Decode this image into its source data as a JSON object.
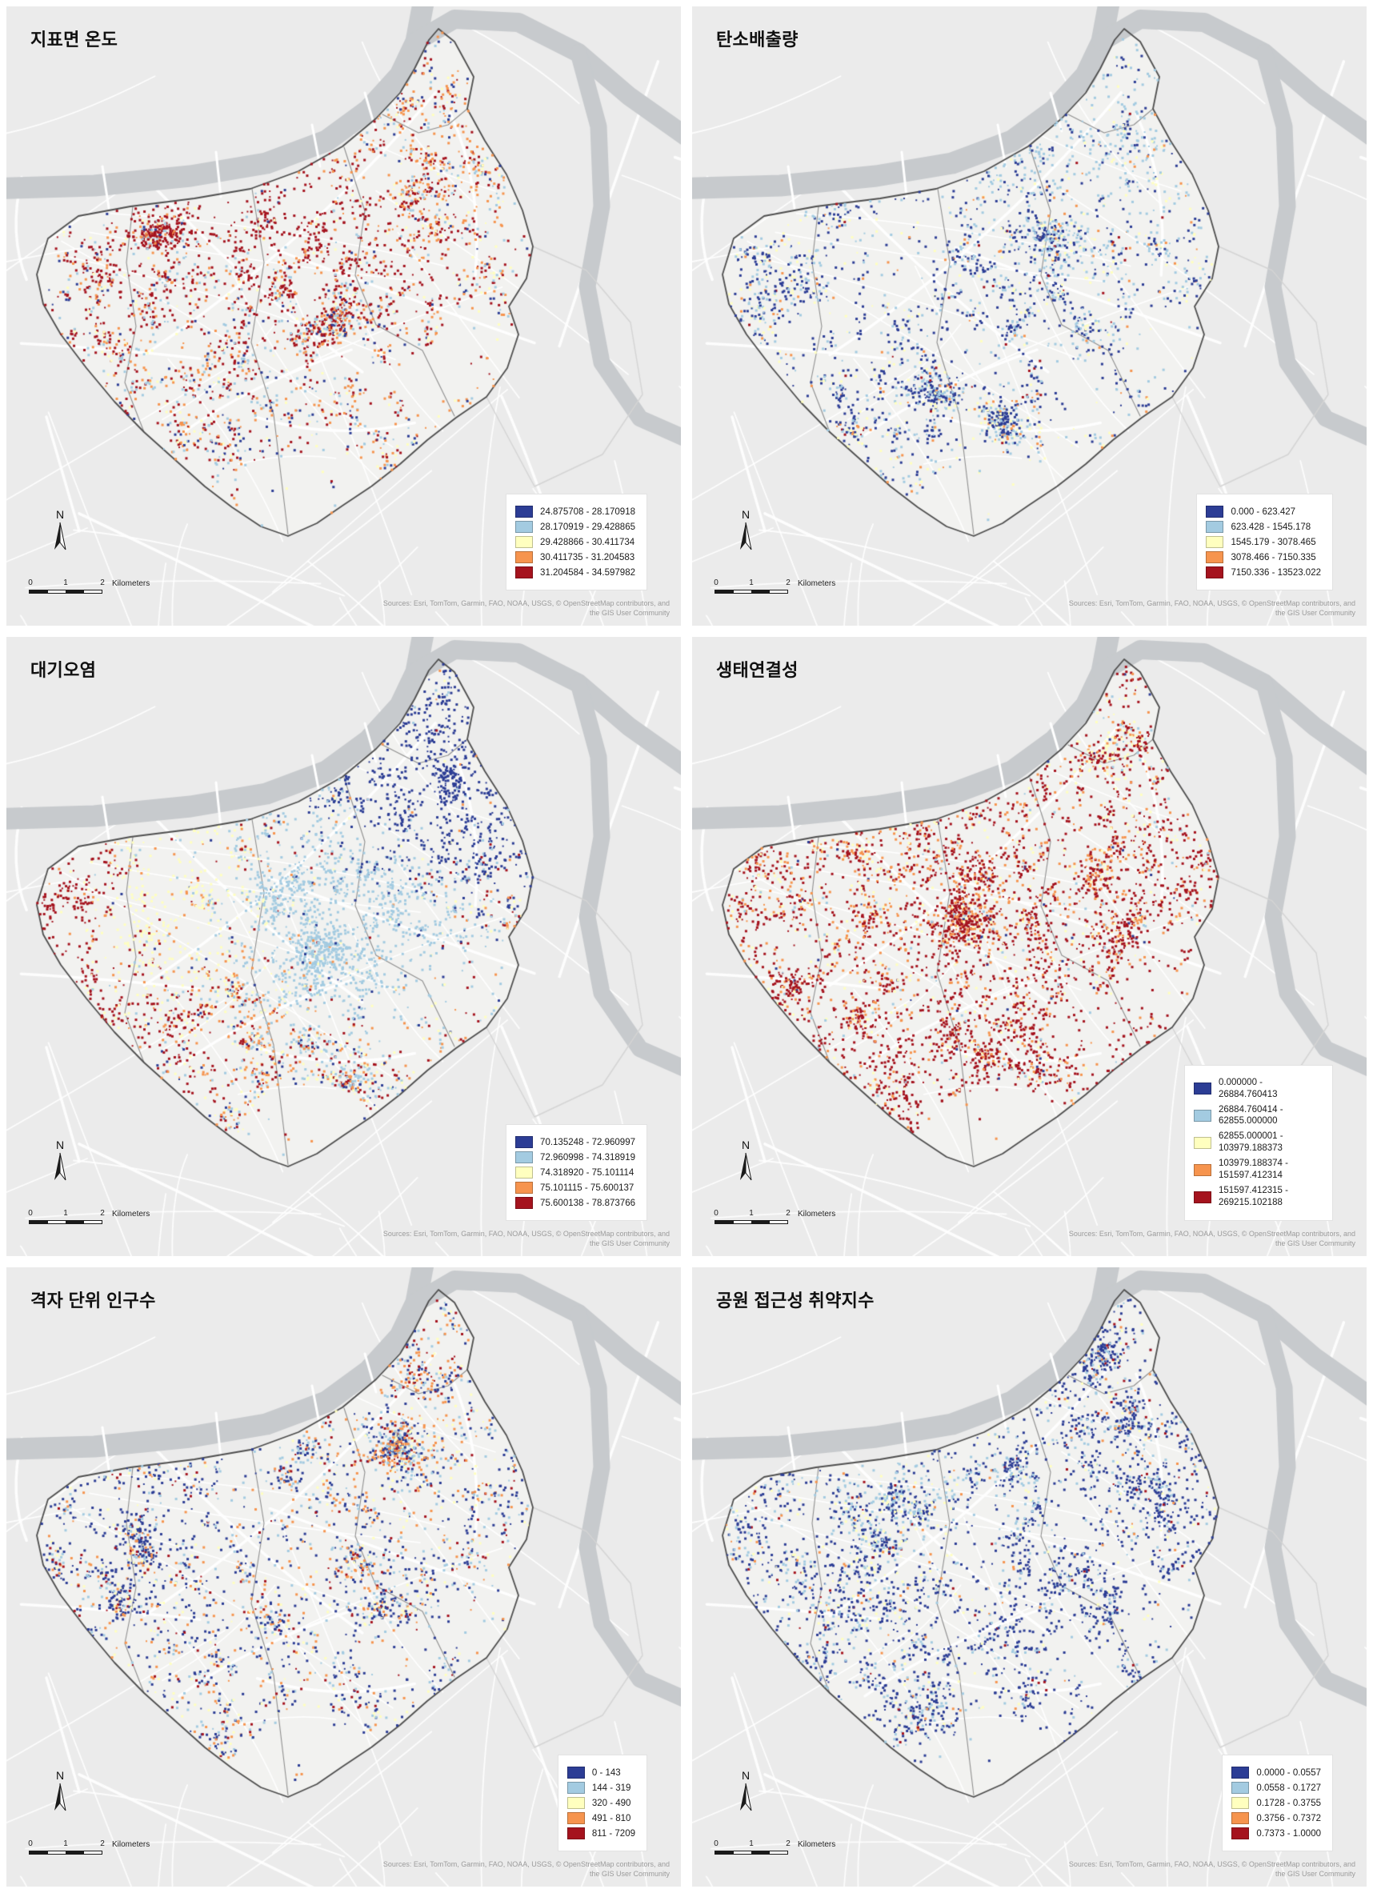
{
  "palette": {
    "classes": [
      "#2c3d95",
      "#a3cbe1",
      "#ffffbf",
      "#f6944e",
      "#a5131e"
    ],
    "basemap": "#ebebeb",
    "region_fill": "#f2f2f0",
    "river": "#c7cacd",
    "boundary": "#4f4f4f",
    "interior_boundary": "#8f8f8f",
    "adjacent_boundary": "#d4d4d4",
    "road": "#ffffff"
  },
  "common": {
    "north_label": "N",
    "scale_ticks": [
      "0",
      "1",
      "2"
    ],
    "scale_unit": "Kilometers",
    "attribution_line1": "Sources: Esri, TomTom, Garmin, FAO, NOAA, USGS, © OpenStreetMap contributors, and",
    "attribution_line2": "the GIS User Community"
  },
  "maps": [
    {
      "id": "land-surface-temperature",
      "title": "지표면 온도",
      "legend": [
        "24.875708 - 28.170918",
        "28.170919 - 29.428865",
        "29.428866 - 30.411734",
        "30.411735 - 31.204583",
        "31.204584 - 34.597982"
      ],
      "legend_wrap": false,
      "pattern": {
        "seed": 11,
        "count": 3200,
        "base": [
          0.08,
          0.16,
          0.12,
          0.32,
          0.32
        ],
        "hotspots": [
          [
            0.22,
            0.38,
            0.13,
            4,
            2.2
          ],
          [
            0.5,
            0.36,
            0.09,
            4,
            2.2
          ],
          [
            0.36,
            0.3,
            0.1,
            4,
            1.4
          ],
          [
            0.6,
            0.2,
            0.08,
            3,
            1.6
          ],
          [
            0.64,
            0.08,
            0.05,
            0,
            5.0
          ],
          [
            0.42,
            0.72,
            0.12,
            0,
            3.0
          ],
          [
            0.33,
            0.52,
            0.1,
            1,
            1.6
          ],
          [
            0.07,
            0.42,
            0.05,
            0,
            1.5
          ]
        ]
      }
    },
    {
      "id": "carbon-emissions",
      "title": "탄소배출량",
      "legend": [
        "0.000 - 623.427",
        "623.428 - 1545.178",
        "1545.179 - 3078.465",
        "3078.466 - 7150.335",
        "7150.336 - 13523.022"
      ],
      "legend_wrap": false,
      "pattern": {
        "seed": 22,
        "count": 2700,
        "base": [
          0.42,
          0.33,
          0.15,
          0.08,
          0.02
        ],
        "hotspots": [
          [
            0.62,
            0.18,
            0.1,
            1,
            2.2
          ],
          [
            0.3,
            0.45,
            0.15,
            0,
            1.4
          ],
          [
            0.22,
            0.35,
            0.1,
            2,
            1.4
          ],
          [
            0.45,
            0.3,
            0.12,
            1,
            1.2
          ]
        ]
      }
    },
    {
      "id": "air-pollution",
      "title": "대기오염",
      "legend": [
        "70.135248 - 72.960997",
        "72.960998 - 74.318919",
        "74.318920 - 75.101114",
        "75.101115 - 75.600137",
        "75.600138 - 78.873766"
      ],
      "legend_wrap": false,
      "pattern": {
        "seed": 33,
        "count": 3800,
        "base": [
          0.02,
          0.03,
          0.03,
          0.03,
          0.03
        ],
        "hotspots": [
          [
            0.64,
            0.14,
            0.12,
            0,
            9
          ],
          [
            0.57,
            0.28,
            0.1,
            0,
            7
          ],
          [
            0.7,
            0.28,
            0.09,
            0,
            6
          ],
          [
            0.44,
            0.38,
            0.11,
            1,
            7
          ],
          [
            0.49,
            0.5,
            0.1,
            1,
            6
          ],
          [
            0.57,
            0.42,
            0.08,
            1,
            4
          ],
          [
            0.21,
            0.37,
            0.08,
            2,
            7
          ],
          [
            0.28,
            0.47,
            0.08,
            2,
            5
          ],
          [
            0.17,
            0.52,
            0.06,
            2,
            4
          ],
          [
            0.26,
            0.29,
            0.08,
            3,
            6
          ],
          [
            0.13,
            0.45,
            0.06,
            3,
            4
          ],
          [
            0.31,
            0.57,
            0.08,
            3,
            3.5
          ],
          [
            0.06,
            0.41,
            0.07,
            4,
            9
          ],
          [
            0.11,
            0.32,
            0.06,
            4,
            6
          ],
          [
            0.16,
            0.58,
            0.08,
            4,
            5
          ],
          [
            0.05,
            0.52,
            0.06,
            4,
            7
          ],
          [
            0.25,
            0.65,
            0.06,
            4,
            3
          ]
        ]
      }
    },
    {
      "id": "ecological-connectivity",
      "title": "생태연결성",
      "legend": [
        "0.000000 - 26884.760413",
        "26884.760414 - 62855.000000",
        "62855.000001 - 103979.188373",
        "103979.188374 - 151597.412314",
        "151597.412315 - 269215.102188"
      ],
      "legend_wrap": true,
      "pattern": {
        "seed": 44,
        "count": 4200,
        "base": [
          0.015,
          0.035,
          0.08,
          0.17,
          0.7
        ],
        "hotspots": [
          [
            0.63,
            0.15,
            0.05,
            1,
            6
          ],
          [
            0.63,
            0.15,
            0.03,
            0,
            2
          ],
          [
            0.61,
            0.22,
            0.07,
            2,
            3
          ],
          [
            0.57,
            0.12,
            0.06,
            2,
            2
          ],
          [
            0.2,
            0.38,
            0.08,
            2,
            2.5
          ],
          [
            0.25,
            0.42,
            0.1,
            3,
            1.8
          ],
          [
            0.55,
            0.33,
            0.08,
            3,
            1.5
          ]
        ]
      }
    },
    {
      "id": "grid-population",
      "title": "격자 단위 인구수",
      "legend": [
        "0 - 143",
        "144 - 319",
        "320 - 490",
        "491 - 810",
        "811 - 7209"
      ],
      "legend_wrap": false,
      "pattern": {
        "seed": 55,
        "count": 3000,
        "base": [
          0.4,
          0.2,
          0.13,
          0.17,
          0.1
        ],
        "hotspots": [
          [
            0.58,
            0.18,
            0.09,
            3,
            2.2
          ],
          [
            0.61,
            0.13,
            0.06,
            4,
            1.8
          ],
          [
            0.22,
            0.4,
            0.12,
            0,
            1.8
          ],
          [
            0.4,
            0.46,
            0.1,
            3,
            1.2
          ],
          [
            0.48,
            0.3,
            0.09,
            1,
            1.3
          ]
        ]
      }
    },
    {
      "id": "park-accessibility-vulnerability",
      "title": "공원 접근성 취약지수",
      "legend": [
        "0.0000 - 0.0557",
        "0.0558 - 0.1727",
        "0.1728 - 0.3755",
        "0.3756 - 0.7372",
        "0.7373 - 1.0000"
      ],
      "legend_wrap": false,
      "pattern": {
        "seed": 66,
        "count": 3400,
        "base": [
          0.6,
          0.23,
          0.09,
          0.05,
          0.03
        ],
        "hotspots": [
          [
            0.33,
            0.42,
            0.07,
            2,
            2.6
          ],
          [
            0.37,
            0.47,
            0.04,
            3,
            2.6
          ],
          [
            0.65,
            0.07,
            0.04,
            4,
            8
          ],
          [
            0.7,
            0.19,
            0.04,
            4,
            6
          ],
          [
            0.765,
            0.4,
            0.035,
            4,
            6
          ],
          [
            0.45,
            0.35,
            0.1,
            1,
            1.5
          ],
          [
            0.55,
            0.45,
            0.14,
            0,
            1.5
          ],
          [
            0.3,
            0.36,
            0.06,
            1,
            1.8
          ]
        ]
      }
    }
  ]
}
